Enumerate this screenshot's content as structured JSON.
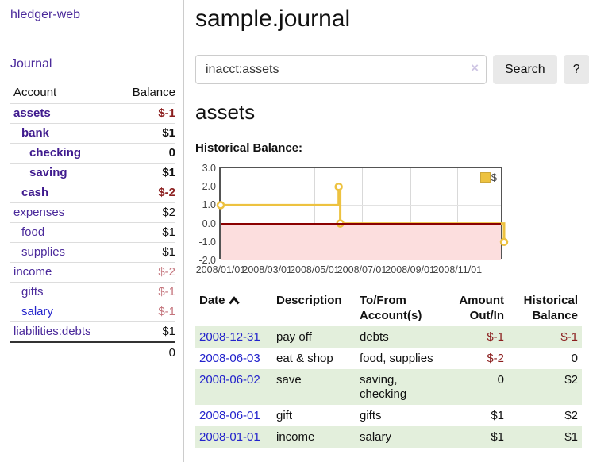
{
  "app": {
    "brand": "hledger-web",
    "nav_journal": "Journal"
  },
  "sidebar": {
    "accounts_header": {
      "account": "Account",
      "balance": "Balance"
    },
    "accounts": [
      {
        "name": "assets",
        "balance": "$-1",
        "level": 1,
        "bold": true,
        "tone": "neg-strong"
      },
      {
        "name": "bank",
        "balance": "$1",
        "level": 2,
        "bold": true,
        "tone": ""
      },
      {
        "name": "checking",
        "balance": "0",
        "level": 3,
        "bold": true,
        "tone": ""
      },
      {
        "name": "saving",
        "balance": "$1",
        "level": 3,
        "bold": true,
        "tone": ""
      },
      {
        "name": "cash",
        "balance": "$-2",
        "level": 2,
        "bold": true,
        "tone": "neg-strong"
      },
      {
        "name": "expenses",
        "balance": "$2",
        "level": 1,
        "bold": false,
        "tone": ""
      },
      {
        "name": "food",
        "balance": "$1",
        "level": 2,
        "bold": false,
        "tone": ""
      },
      {
        "name": "supplies",
        "balance": "$1",
        "level": 2,
        "bold": false,
        "tone": ""
      },
      {
        "name": "income",
        "balance": "$-2",
        "level": 1,
        "bold": false,
        "tone": "neg-soft"
      },
      {
        "name": "gifts",
        "balance": "$-1",
        "level": 2,
        "bold": false,
        "tone": "neg-soft"
      },
      {
        "name": "salary",
        "balance": "$-1",
        "level": 2,
        "bold": false,
        "tone": "neg-soft",
        "blue": true
      },
      {
        "name": "liabilities:debts",
        "balance": "$1",
        "level": 1,
        "bold": false,
        "tone": ""
      }
    ],
    "total": "0"
  },
  "header": {
    "title": "sample.journal"
  },
  "search": {
    "value": "inacct:assets",
    "clear_icon": "×",
    "button_label": "Search",
    "help_label": "?"
  },
  "account_page": {
    "heading": "assets",
    "chart_label": "Historical Balance:"
  },
  "chart_data": {
    "type": "line",
    "step": true,
    "title": "Historical Balance",
    "x_range": [
      "2008-01-01",
      "2008-12-31"
    ],
    "ylim": [
      -2,
      3
    ],
    "y_ticks": [
      3.0,
      2.0,
      1.0,
      0.0,
      -1.0,
      -2.0
    ],
    "x_tick_labels": [
      "2008/01/01",
      "2008/03/01",
      "2008/05/01",
      "2008/07/01",
      "2008/09/01",
      "2008/11/01"
    ],
    "series": [
      {
        "name": "$",
        "color": "#edc240",
        "points": [
          {
            "date": "2008-01-01",
            "value": 1
          },
          {
            "date": "2008-06-01",
            "value": 2
          },
          {
            "date": "2008-06-03",
            "value": 0
          },
          {
            "date": "2008-12-31",
            "value": -1
          }
        ]
      }
    ],
    "legend": {
      "position": "top-right",
      "label": "$"
    },
    "grid": true,
    "negative_region_color": "#fcdede",
    "zero_line_color": "#8b0000"
  },
  "register": {
    "headers": {
      "date": "Date",
      "description": "Description",
      "accounts": "To/From Account(s)",
      "amount": "Amount Out/In",
      "balance": "Historical Balance"
    },
    "rows": [
      {
        "date": "2008-12-31",
        "description": "pay off",
        "accounts": "debts",
        "amount": "$-1",
        "balance": "$-1"
      },
      {
        "date": "2008-06-03",
        "description": "eat & shop",
        "accounts": "food, supplies",
        "amount": "$-2",
        "balance": "0"
      },
      {
        "date": "2008-06-02",
        "description": "save",
        "accounts": "saving, checking",
        "amount": "0",
        "balance": "$2"
      },
      {
        "date": "2008-06-01",
        "description": "gift",
        "accounts": "gifts",
        "amount": "$1",
        "balance": "$2"
      },
      {
        "date": "2008-01-01",
        "description": "income",
        "accounts": "salary",
        "amount": "$1",
        "balance": "$1"
      }
    ]
  },
  "theme": {
    "purple": "#4b2a9b",
    "purple_bold": "#3f1a8e",
    "blue_link": "#2323cc",
    "neg_strong": "#8b1e1e",
    "neg_soft": "#c4747c",
    "row_green": "#e3efdc",
    "series_yellow": "#edc240",
    "negative_region": "#fcdede",
    "zero_line": "#8b0000",
    "button_gray": "#e9e9e9"
  }
}
